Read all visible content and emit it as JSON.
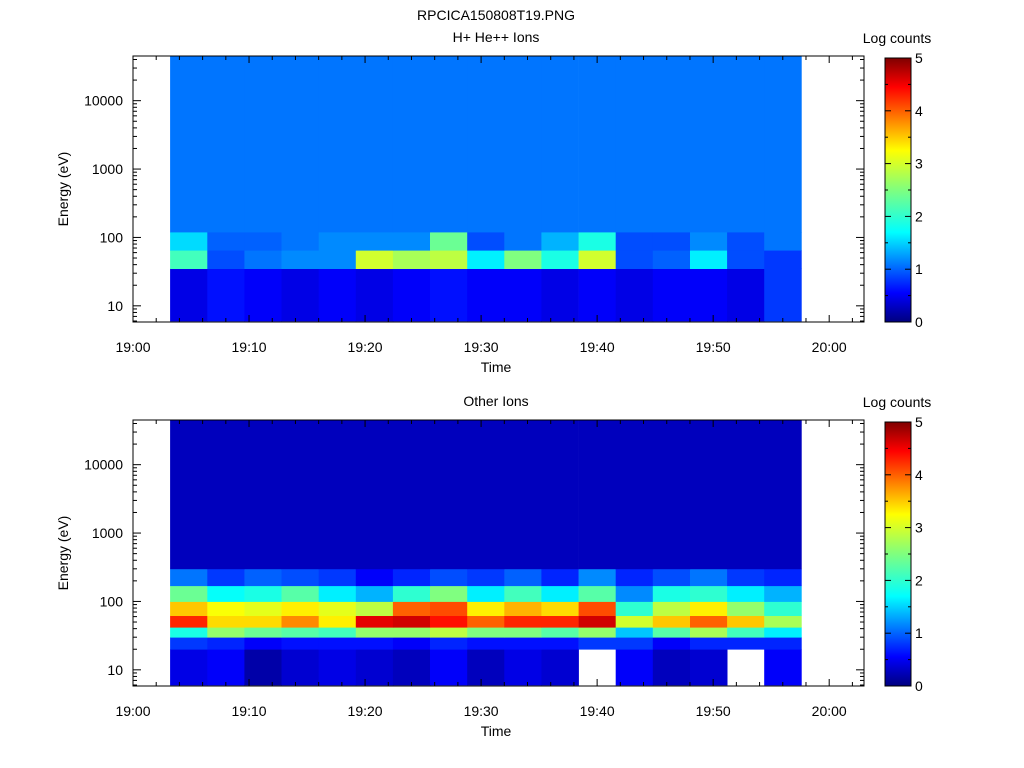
{
  "figure_title": "RPCICA150808T19.PNG",
  "chart_data": [
    {
      "type": "heatmap",
      "title": "H+ He++ Ions",
      "xlabel": "Time",
      "ylabel": "Energy (eV)",
      "y_scale": "log",
      "ylim": [
        5.8,
        45000
      ],
      "x_range": [
        "19:00",
        "20:03"
      ],
      "x_ticks": [
        "19:00",
        "19:10",
        "19:20",
        "19:30",
        "19:40",
        "19:50",
        "20:00"
      ],
      "y_ticks": [
        "10",
        "100",
        "1000",
        "10000"
      ],
      "colorbar": {
        "label": "Log counts",
        "min": 0,
        "max": 5,
        "ticks": [
          "0",
          "1",
          "2",
          "3",
          "4",
          "5"
        ],
        "colormap": "jet"
      },
      "time_columns": [
        "19:03.2",
        "19:06.4",
        "19:09.6",
        "19:12.8",
        "19:16.0",
        "19:19.2",
        "19:22.4",
        "19:25.6",
        "19:28.8",
        "19:32.0",
        "19:35.2",
        "19:38.4",
        "19:41.6",
        "19:44.8",
        "19:48.0",
        "19:51.2",
        "19:54.4"
      ],
      "time_start": "19:03.2",
      "time_end": "19:57.6",
      "energy_bands": [
        {
          "e_min": 6,
          "e_max": 35,
          "log_counts": [
            0.5,
            0.7,
            0.6,
            0.5,
            0.6,
            0.5,
            0.6,
            0.7,
            0.6,
            0.6,
            0.5,
            0.6,
            0.5,
            0.6,
            0.6,
            0.5,
            0.9
          ]
        },
        {
          "e_min": 35,
          "e_max": 65,
          "log_counts": [
            2.2,
            1.0,
            1.2,
            1.3,
            1.3,
            2.9,
            2.7,
            2.8,
            1.8,
            2.5,
            2.0,
            2.9,
            1.0,
            1.1,
            1.8,
            1.0,
            0.9
          ]
        },
        {
          "e_min": 65,
          "e_max": 120,
          "log_counts": [
            1.7,
            1.1,
            1.1,
            1.2,
            1.3,
            1.3,
            1.3,
            2.4,
            1.0,
            1.2,
            1.5,
            2.0,
            1.0,
            1.0,
            1.3,
            1.0,
            1.2
          ]
        },
        {
          "e_min": 120,
          "e_max": 45000,
          "log_counts": [
            1.2,
            1.2,
            1.2,
            1.2,
            1.2,
            1.2,
            1.2,
            1.2,
            1.2,
            1.2,
            1.2,
            1.2,
            1.2,
            1.2,
            1.2,
            1.2,
            1.2
          ]
        }
      ]
    },
    {
      "type": "heatmap",
      "title": "Other Ions",
      "xlabel": "Time",
      "ylabel": "Energy (eV)",
      "y_scale": "log",
      "ylim": [
        5.8,
        45000
      ],
      "x_range": [
        "19:00",
        "20:03"
      ],
      "x_ticks": [
        "19:00",
        "19:10",
        "19:20",
        "19:30",
        "19:40",
        "19:50",
        "20:00"
      ],
      "y_ticks": [
        "10",
        "100",
        "1000",
        "10000"
      ],
      "colorbar": {
        "label": "Log counts",
        "min": 0,
        "max": 5,
        "ticks": [
          "0",
          "1",
          "2",
          "3",
          "4",
          "5"
        ],
        "colormap": "jet"
      },
      "time_columns": [
        "19:03.2",
        "19:06.4",
        "19:09.6",
        "19:12.8",
        "19:16.0",
        "19:19.2",
        "19:22.4",
        "19:25.6",
        "19:28.8",
        "19:32.0",
        "19:35.2",
        "19:38.4",
        "19:41.6",
        "19:44.8",
        "19:48.0",
        "19:51.2",
        "19:54.4"
      ],
      "time_start": "19:03.2",
      "time_end": "19:57.6",
      "energy_bands": [
        {
          "e_min": 6,
          "e_max": 20,
          "log_counts": [
            0.5,
            0.6,
            0.2,
            0.4,
            0.5,
            0.4,
            0.3,
            0.6,
            0.3,
            0.5,
            0.4,
            null,
            0.6,
            0.3,
            0.4,
            null,
            0.6
          ]
        },
        {
          "e_min": 20,
          "e_max": 30,
          "log_counts": [
            0.9,
            0.8,
            0.6,
            0.7,
            0.7,
            0.7,
            0.6,
            0.8,
            0.7,
            0.7,
            0.7,
            0.9,
            0.9,
            0.6,
            0.8,
            0.8,
            0.8
          ]
        },
        {
          "e_min": 30,
          "e_max": 42,
          "log_counts": [
            2.0,
            2.6,
            2.4,
            2.3,
            2.2,
            2.6,
            2.6,
            2.8,
            2.5,
            2.5,
            2.3,
            2.6,
            1.6,
            2.3,
            2.7,
            2.2,
            1.8
          ]
        },
        {
          "e_min": 42,
          "e_max": 62,
          "log_counts": [
            4.2,
            3.3,
            3.3,
            3.7,
            3.2,
            4.5,
            4.6,
            4.3,
            3.9,
            4.2,
            4.2,
            4.6,
            2.9,
            3.4,
            3.9,
            3.4,
            2.7
          ]
        },
        {
          "e_min": 62,
          "e_max": 100,
          "log_counts": [
            3.4,
            3.1,
            3.0,
            3.2,
            3.0,
            2.8,
            3.9,
            4.0,
            3.2,
            3.5,
            3.3,
            4.0,
            2.1,
            2.8,
            3.2,
            2.6,
            2.1
          ]
        },
        {
          "e_min": 100,
          "e_max": 170,
          "log_counts": [
            2.4,
            1.9,
            2.0,
            2.3,
            1.8,
            1.5,
            2.1,
            2.5,
            1.8,
            2.2,
            1.8,
            2.3,
            1.3,
            2.0,
            2.1,
            1.8,
            1.5
          ]
        },
        {
          "e_min": 170,
          "e_max": 300,
          "log_counts": [
            1.2,
            0.9,
            1.1,
            1.0,
            0.9,
            0.6,
            0.8,
            1.0,
            0.9,
            1.1,
            0.8,
            1.3,
            0.8,
            1.0,
            1.2,
            0.9,
            0.8
          ]
        },
        {
          "e_min": 300,
          "e_max": 45000,
          "log_counts": [
            0.3,
            0.3,
            0.3,
            0.3,
            0.3,
            0.3,
            0.3,
            0.3,
            0.3,
            0.3,
            0.3,
            0.3,
            0.3,
            0.3,
            0.3,
            0.3,
            0.3
          ]
        }
      ]
    }
  ]
}
